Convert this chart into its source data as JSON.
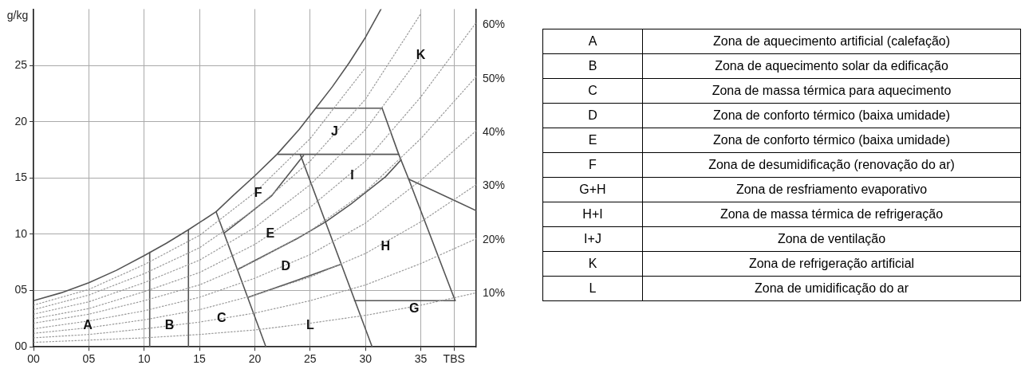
{
  "chart_data": [
    {
      "type": "line",
      "ylabel": "g/kg",
      "xlim": [
        0,
        40
      ],
      "ylim": [
        0,
        30
      ],
      "y2lim": [
        0,
        63
      ],
      "xticks": [
        {
          "value": 0,
          "label": "00"
        },
        {
          "value": 5,
          "label": "05"
        },
        10,
        15,
        20,
        25,
        30,
        35,
        {
          "value": 38,
          "label": "TBS"
        }
      ],
      "yticks": [
        {
          "value": 0,
          "label": "00"
        },
        {
          "value": 5,
          "label": "05"
        },
        10,
        15,
        20,
        25
      ],
      "y2ticks": [
        {
          "value": 10,
          "label": "10%"
        },
        {
          "value": 20,
          "label": "20%"
        },
        {
          "value": 30,
          "label": "30%"
        },
        {
          "value": 40,
          "label": "40%"
        },
        {
          "value": 50,
          "label": "50%"
        },
        {
          "value": 60,
          "label": "60%"
        }
      ],
      "grid": true,
      "legend": false,
      "marker": "none",
      "series": [
        {
          "color": "#999999",
          "line_style": "dotted",
          "x": [
            0,
            5,
            10,
            15,
            20,
            25,
            30,
            35,
            40
          ],
          "values": [
            0.4,
            0.6,
            0.8,
            1.1,
            1.5,
            2.1,
            2.8,
            3.7,
            4.8
          ]
        },
        {
          "color": "#999999",
          "line_style": "dotted",
          "x": [
            0,
            5,
            10,
            15,
            20,
            25,
            30,
            35,
            40
          ],
          "values": [
            0.8,
            1.1,
            1.6,
            2.2,
            3.0,
            4.1,
            5.5,
            7.4,
            9.6
          ]
        },
        {
          "color": "#999999",
          "line_style": "dotted",
          "x": [
            0,
            5,
            10,
            15,
            20,
            25,
            30,
            35,
            40
          ],
          "values": [
            1.2,
            1.7,
            2.4,
            3.3,
            4.6,
            6.2,
            8.3,
            11.1,
            14.4
          ]
        },
        {
          "color": "#999999",
          "line_style": "dotted",
          "x": [
            0,
            5,
            10,
            15,
            20,
            25,
            30,
            35,
            40
          ],
          "values": [
            1.6,
            2.3,
            3.2,
            4.4,
            6.1,
            8.2,
            11.0,
            14.8,
            19.2
          ]
        },
        {
          "color": "#999999",
          "line_style": "dotted",
          "x": [
            0,
            5,
            10,
            15,
            20,
            25,
            30,
            35,
            40
          ],
          "values": [
            2.1,
            2.9,
            4.1,
            5.5,
            7.6,
            10.3,
            13.8,
            18.5,
            24.0
          ]
        },
        {
          "color": "#999999",
          "line_style": "dotted",
          "x": [
            0,
            5,
            10,
            15,
            20,
            25,
            30,
            35,
            40
          ],
          "values": [
            2.5,
            3.4,
            4.9,
            6.6,
            9.1,
            12.4,
            16.5,
            22.2,
            28.8
          ]
        },
        {
          "color": "#999999",
          "line_style": "dotted",
          "x": [
            0,
            5,
            10,
            15,
            20,
            25,
            30,
            35
          ],
          "values": [
            2.9,
            4.0,
            5.7,
            7.7,
            10.6,
            14.4,
            19.3,
            25.9
          ]
        },
        {
          "color": "#999999",
          "line_style": "dotted",
          "x": [
            0,
            5,
            10,
            15,
            20,
            25,
            30,
            35
          ],
          "values": [
            3.3,
            4.6,
            6.5,
            8.8,
            12.2,
            16.5,
            22.0,
            29.6
          ]
        },
        {
          "color": "#999999",
          "line_style": "dotted",
          "x": [
            0,
            5,
            10,
            15,
            20,
            25,
            30
          ],
          "values": [
            3.7,
            5.1,
            7.3,
            9.9,
            13.7,
            18.5,
            24.8
          ]
        },
        {
          "color": "#555555",
          "line_style": "solid",
          "x": [
            0,
            2.5,
            5,
            7.5,
            10,
            12,
            14,
            16.5,
            18,
            20,
            22,
            24,
            25.5,
            27,
            28.5,
            30,
            31.4
          ],
          "values": [
            4.1,
            4.8,
            5.7,
            6.8,
            8.1,
            9.2,
            10.4,
            12.0,
            13.4,
            15.2,
            17.1,
            19.3,
            21.2,
            23.1,
            25.2,
            27.5,
            30
          ]
        },
        {
          "color": "#555555",
          "line_style": "solid",
          "x": [
            10.5,
            10.5
          ],
          "values": [
            0,
            8.4
          ]
        },
        {
          "color": "#555555",
          "line_style": "solid",
          "x": [
            14,
            14
          ],
          "values": [
            0,
            10.4
          ]
        },
        {
          "color": "#555555",
          "line_style": "solid",
          "x": [
            16.5,
            21
          ],
          "values": [
            12.0,
            0
          ]
        },
        {
          "color": "#555555",
          "line_style": "solid",
          "x": [
            17.2,
            18,
            21.5,
            24.4
          ],
          "values": [
            10.1,
            10.7,
            13.4,
            17.0
          ]
        },
        {
          "color": "#555555",
          "line_style": "solid",
          "x": [
            18.5,
            23.8,
            26.4,
            28.7,
            31.8,
            33.2
          ],
          "values": [
            6.9,
            9.6,
            11.1,
            12.7,
            15.1,
            16.6
          ]
        },
        {
          "color": "#555555",
          "line_style": "solid",
          "x": [
            19.4,
            23.8,
            27.7
          ],
          "values": [
            4.4,
            5.9,
            7.3
          ]
        },
        {
          "color": "#555555",
          "line_style": "solid",
          "x": [
            24.1,
            30.6
          ],
          "values": [
            17.1,
            0
          ]
        },
        {
          "color": "#555555",
          "line_style": "solid",
          "x": [
            25.5,
            31.5
          ],
          "values": [
            21.2,
            21.2
          ]
        },
        {
          "color": "#555555",
          "line_style": "solid",
          "x": [
            22.1,
            33.0
          ],
          "values": [
            17.1,
            17.1
          ]
        },
        {
          "color": "#555555",
          "line_style": "solid",
          "x": [
            31.5,
            33.0,
            33.9,
            38.1
          ],
          "values": [
            21.2,
            17.1,
            14.9,
            4.1
          ]
        },
        {
          "color": "#555555",
          "line_style": "solid",
          "x": [
            29.0,
            38.1
          ],
          "values": [
            4.1,
            4.1
          ]
        },
        {
          "color": "#555555",
          "line_style": "solid",
          "x": [
            33.9,
            40
          ],
          "values": [
            14.9,
            12.1
          ]
        }
      ],
      "annotations": [
        {
          "text": "A",
          "x": 4.9,
          "y": 1.9
        },
        {
          "text": "B",
          "x": 12.3,
          "y": 1.9
        },
        {
          "text": "C",
          "x": 17.0,
          "y": 2.5
        },
        {
          "text": "D",
          "x": 22.8,
          "y": 7.1
        },
        {
          "text": "E",
          "x": 21.4,
          "y": 10.0
        },
        {
          "text": "F",
          "x": 20.3,
          "y": 13.6
        },
        {
          "text": "G",
          "x": 34.4,
          "y": 3.4
        },
        {
          "text": "H",
          "x": 31.8,
          "y": 8.9
        },
        {
          "text": "I",
          "x": 28.8,
          "y": 15.2
        },
        {
          "text": "J",
          "x": 27.2,
          "y": 19.1
        },
        {
          "text": "K",
          "x": 35.0,
          "y": 25.9
        },
        {
          "text": "L",
          "x": 25.0,
          "y": 1.9
        }
      ]
    },
    {
      "type": "other",
      "categories": [
        "A",
        "B",
        "C",
        "D",
        "E",
        "F",
        "G+H",
        "H+I",
        "I+J",
        "K",
        "L"
      ],
      "annotations": [
        "Zona de aquecimento artificial (calefação)",
        "Zona de aquecimento solar da edificação",
        "Zona de massa térmica para aquecimento",
        "Zona de conforto térmico (baixa umidade)",
        "Zona de conforto térmico (baixa umidade)",
        "Zona de desumidificação (renovação do ar)",
        "Zona de resfriamento evaporativo",
        "Zona de massa térmica de refrigeração",
        "Zona de ventilação",
        "Zona de refrigeração artificial",
        "Zona de umidificação do ar"
      ]
    }
  ]
}
